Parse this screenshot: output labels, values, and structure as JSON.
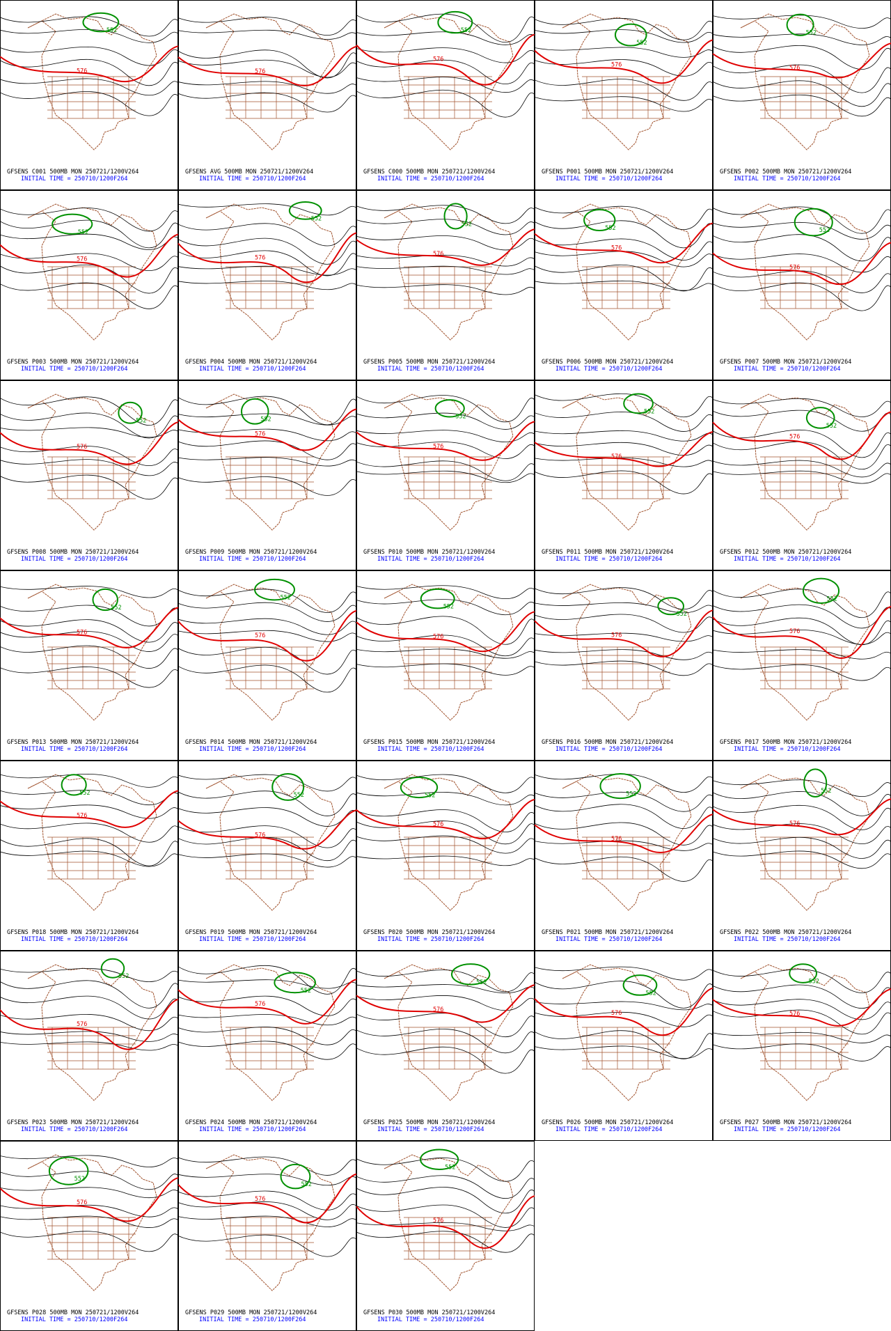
{
  "panels": [
    {
      "title": "GFSENS C001 500MB MON 250721/1200V264",
      "init": "INITIAL TIME = 250710/1200F264",
      "contours": [
        "576",
        "552"
      ]
    },
    {
      "title": "GFSENS AVG 500MB MON 250721/1200V264",
      "init": "INITIAL TIME = 250710/1200F264",
      "contours": [
        "576"
      ]
    },
    {
      "title": "GFSENS C000 500MB MON 250721/1200V264",
      "init": "INITIAL TIME = 250710/1200F264",
      "contours": [
        "576",
        "552"
      ]
    },
    {
      "title": "GFSENS P001 500MB MON 250721/1200V264",
      "init": "INITIAL TIME = 250710/1200F264",
      "contours": [
        "576",
        "552"
      ]
    },
    {
      "title": "GFSENS P002 500MB MON 250721/1200V264",
      "init": "INITIAL TIME = 250710/1200F264",
      "contours": [
        "576",
        "552"
      ]
    },
    {
      "title": "GFSENS P003 500MB MON 250721/1200V264",
      "init": "INITIAL TIME = 250710/1200F264",
      "contours": [
        "576",
        "552"
      ]
    },
    {
      "title": "GFSENS P004 500MB MON 250721/1200V264",
      "init": "INITIAL TIME = 250710/1200F264",
      "contours": [
        "576",
        "552"
      ]
    },
    {
      "title": "GFSENS P005 500MB MON 250721/1200V264",
      "init": "INITIAL TIME = 250710/1200F264",
      "contours": [
        "576",
        "552"
      ]
    },
    {
      "title": "GFSENS P006 500MB MON 250721/1200V264",
      "init": "INITIAL TIME = 250710/1200F264",
      "contours": [
        "576",
        "552"
      ]
    },
    {
      "title": "GFSENS P007 500MB MON 250721/1200V264",
      "init": "INITIAL TIME = 250710/1200F264",
      "contours": [
        "576",
        "552"
      ]
    },
    {
      "title": "GFSENS P008 500MB MON 250721/1200V264",
      "init": "INITIAL TIME = 250710/1200F264",
      "contours": [
        "576",
        "552"
      ]
    },
    {
      "title": "GFSENS P009 500MB MON 250721/1200V264",
      "init": "INITIAL TIME = 250710/1200F264",
      "contours": [
        "576",
        "552"
      ]
    },
    {
      "title": "GFSENS P010 500MB MON 250721/1200V264",
      "init": "INITIAL TIME = 250710/1200F264",
      "contours": [
        "576",
        "552"
      ]
    },
    {
      "title": "GFSENS P011 500MB MON 250721/1200V264",
      "init": "INITIAL TIME = 250710/1200F264",
      "contours": [
        "576",
        "552"
      ]
    },
    {
      "title": "GFSENS P012 500MB MON 250721/1200V264",
      "init": "INITIAL TIME = 250710/1200F264",
      "contours": [
        "576",
        "552"
      ]
    },
    {
      "title": "GFSENS P013 500MB MON 250721/1200V264",
      "init": "INITIAL TIME = 250710/1200F264",
      "contours": [
        "576",
        "552"
      ]
    },
    {
      "title": "GFSENS P014 500MB MON 250721/1200V264",
      "init": "INITIAL TIME = 250710/1200F264",
      "contours": [
        "576",
        "552"
      ]
    },
    {
      "title": "GFSENS P015 500MB MON 250721/1200V264",
      "init": "INITIAL TIME = 250710/1200F264",
      "contours": [
        "576",
        "552"
      ]
    },
    {
      "title": "GFSENS P016 500MB MON 250721/1200V264",
      "init": "INITIAL TIME = 250710/1200F264",
      "contours": [
        "576",
        "552"
      ]
    },
    {
      "title": "GFSENS P017 500MB MON 250721/1200V264",
      "init": "INITIAL TIME = 250710/1200F264",
      "contours": [
        "576",
        "552"
      ]
    },
    {
      "title": "GFSENS P018 500MB MON 250721/1200V264",
      "init": "INITIAL TIME = 250710/1200F264",
      "contours": [
        "576",
        "552"
      ]
    },
    {
      "title": "GFSENS P019 500MB MON 250721/1200V264",
      "init": "INITIAL TIME = 250710/1200F264",
      "contours": [
        "576",
        "552"
      ]
    },
    {
      "title": "GFSENS P020 500MB MON 250721/1200V264",
      "init": "INITIAL TIME = 250710/1200F264",
      "contours": [
        "576",
        "552"
      ]
    },
    {
      "title": "GFSENS P021 500MB MON 250721/1200V264",
      "init": "INITIAL TIME = 250710/1200F264",
      "contours": [
        "576",
        "552"
      ]
    },
    {
      "title": "GFSENS P022 500MB MON 250721/1200V264",
      "init": "INITIAL TIME = 250710/1200F264",
      "contours": [
        "576",
        "552"
      ]
    },
    {
      "title": "GFSENS P023 500MB MON 250721/1200V264",
      "init": "INITIAL TIME = 250710/1200F264",
      "contours": [
        "576",
        "552"
      ]
    },
    {
      "title": "GFSENS P024 500MB MON 250721/1200V264",
      "init": "INITIAL TIME = 250710/1200F264",
      "contours": [
        "576",
        "552"
      ]
    },
    {
      "title": "GFSENS P025 500MB MON 250721/1200V264",
      "init": "INITIAL TIME = 250710/1200F264",
      "contours": [
        "576",
        "552"
      ]
    },
    {
      "title": "GFSENS P026 500MB MON 250721/1200V264",
      "init": "INITIAL TIME = 250710/1200F264",
      "contours": [
        "576",
        "552"
      ]
    },
    {
      "title": "GFSENS P027 500MB MON 250721/1200V264",
      "init": "INITIAL TIME = 250710/1200F264",
      "contours": [
        "576",
        "552"
      ]
    },
    {
      "title": "GFSENS P028 500MB MON 250721/1200V264",
      "init": "INITIAL TIME = 250710/1200F264",
      "contours": [
        "576",
        "552"
      ]
    },
    {
      "title": "GFSENS P029 500MB MON 250721/1200V264",
      "init": "INITIAL TIME = 250710/1200F264",
      "contours": [
        "576",
        "552"
      ]
    },
    {
      "title": "GFSENS P030 500MB MON 250721/1200V264",
      "init": "INITIAL TIME = 250710/1200F264",
      "contours": [
        "576",
        "552"
      ]
    }
  ]
}
